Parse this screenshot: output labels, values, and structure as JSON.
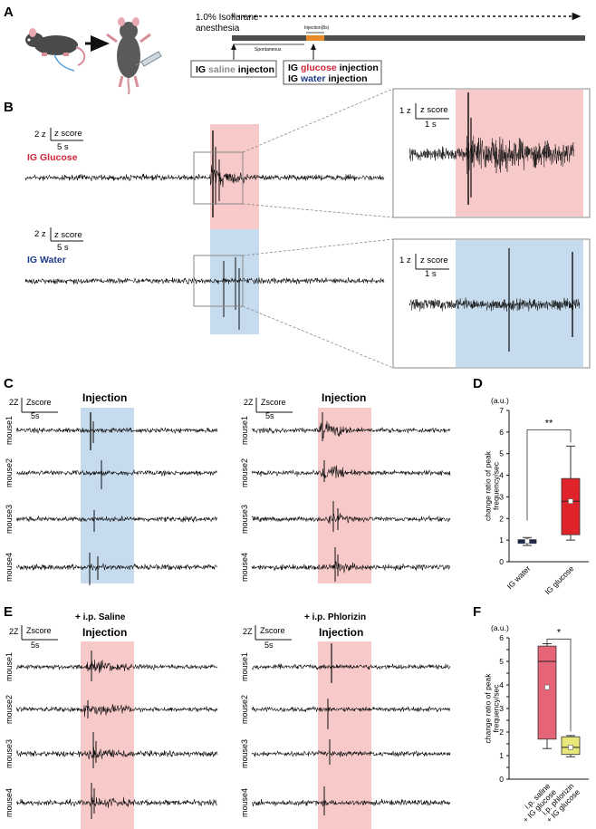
{
  "panels": {
    "A": "A",
    "B": "B",
    "C": "C",
    "D": "D",
    "E": "E",
    "F": "F"
  },
  "panel_a": {
    "anesthesia_line1": "1.0% Isoflurane",
    "anesthesia_line2": "anesthesia",
    "injection_label": "Injection(8s)",
    "spontaneous_label": "Spontaneous",
    "saline_box": {
      "prefix": "IG ",
      "highlight": "saline",
      "suffix": " injecton"
    },
    "glucose_box": {
      "prefix": "IG ",
      "highlight": "glucose",
      "suffix": " injection"
    },
    "water_box": {
      "prefix": "IG ",
      "highlight": "water",
      "suffix": " injection"
    }
  },
  "panel_b": {
    "glucose_label": "IG Glucose",
    "water_label": "IG Water",
    "scale_amp": "2 z",
    "scale_unit": "z score",
    "scale_time": "5 s",
    "zoom_amp": "1 z",
    "zoom_unit": "z score",
    "zoom_time": "1 s"
  },
  "panel_c": {
    "scale_amp": "2Z",
    "scale_unit": "Zscore",
    "scale_time": "5s",
    "injection_title": "Injection",
    "mice": [
      "mouse1",
      "mouse2",
      "mouse3",
      "mouse4"
    ]
  },
  "panel_e": {
    "scale_amp": "2Z",
    "scale_unit": "Zscore",
    "scale_time": "5s",
    "injection_title": "Injection",
    "left_condition": "+ i.p. Saline",
    "right_condition": "+ i.p. Phlorizin",
    "mice": [
      "mouse1",
      "mouse2",
      "mouse3",
      "mouse4"
    ]
  },
  "colors": {
    "glucose_red": "#d0263b",
    "water_blue": "#1f3c88",
    "saline_gray": "#8a8a8a",
    "pink_shade": "#f8c9c9",
    "blue_shade": "#c6dcee",
    "box_red": "#e0222a",
    "box_navy": "#1c2b6b",
    "box_pink": "#e56477",
    "box_yellow": "#e8e87a",
    "timeline_orange": "#e88a2a"
  },
  "chart_data": [
    {
      "id": "D",
      "type": "box",
      "unit_label": "(a.u.)",
      "ylabel": "change ratio of peak frequency/sec",
      "ylim": [
        0,
        7
      ],
      "yticks": [
        0,
        1,
        2,
        3,
        4,
        5,
        6,
        7
      ],
      "categories": [
        "IG water",
        "IG glucose"
      ],
      "boxes": [
        {
          "name": "IG water",
          "whisker_low": 0.75,
          "q1": 0.85,
          "median": 0.95,
          "q3": 1.02,
          "whisker_high": 1.12,
          "mean": 0.95,
          "color": "#1c2b6b"
        },
        {
          "name": "IG glucose",
          "whisker_low": 1.0,
          "q1": 1.25,
          "median": 2.8,
          "q3": 3.85,
          "whisker_high": 5.35,
          "mean": 2.8,
          "color": "#e0222a"
        }
      ],
      "significance": "**"
    },
    {
      "id": "F",
      "type": "box",
      "unit_label": "(a.u.)",
      "ylabel": "change ratio of peak frequency/sec",
      "ylim": [
        0,
        6
      ],
      "yticks": [
        0,
        0.5,
        1,
        1.5,
        2,
        2.5,
        3,
        3.5,
        4,
        4.5,
        5,
        5.5,
        6
      ],
      "ytick_labels": [
        "0",
        "",
        "1",
        "",
        "2",
        "",
        "3",
        "",
        "4",
        "",
        "5",
        "",
        "6"
      ],
      "categories": [
        "i.p. saline + IG glucose",
        "i.p. phlorizin + IG glucose"
      ],
      "category_lines": [
        [
          "i.p. saline",
          "+ IG glucose"
        ],
        [
          "i.p. phlorizin",
          "+ IG glucose"
        ]
      ],
      "boxes": [
        {
          "name": "i.p. saline + IG glucose",
          "whisker_low": 1.3,
          "q1": 1.7,
          "median": 5.0,
          "q3": 5.65,
          "whisker_high": 5.75,
          "mean": 3.9,
          "color": "#e56477"
        },
        {
          "name": "i.p. phlorizin + IG glucose",
          "whisker_low": 0.95,
          "q1": 1.05,
          "median": 1.35,
          "q3": 1.8,
          "whisker_high": 1.85,
          "mean": 1.35,
          "color": "#e8e87a"
        }
      ],
      "significance": "*"
    }
  ]
}
